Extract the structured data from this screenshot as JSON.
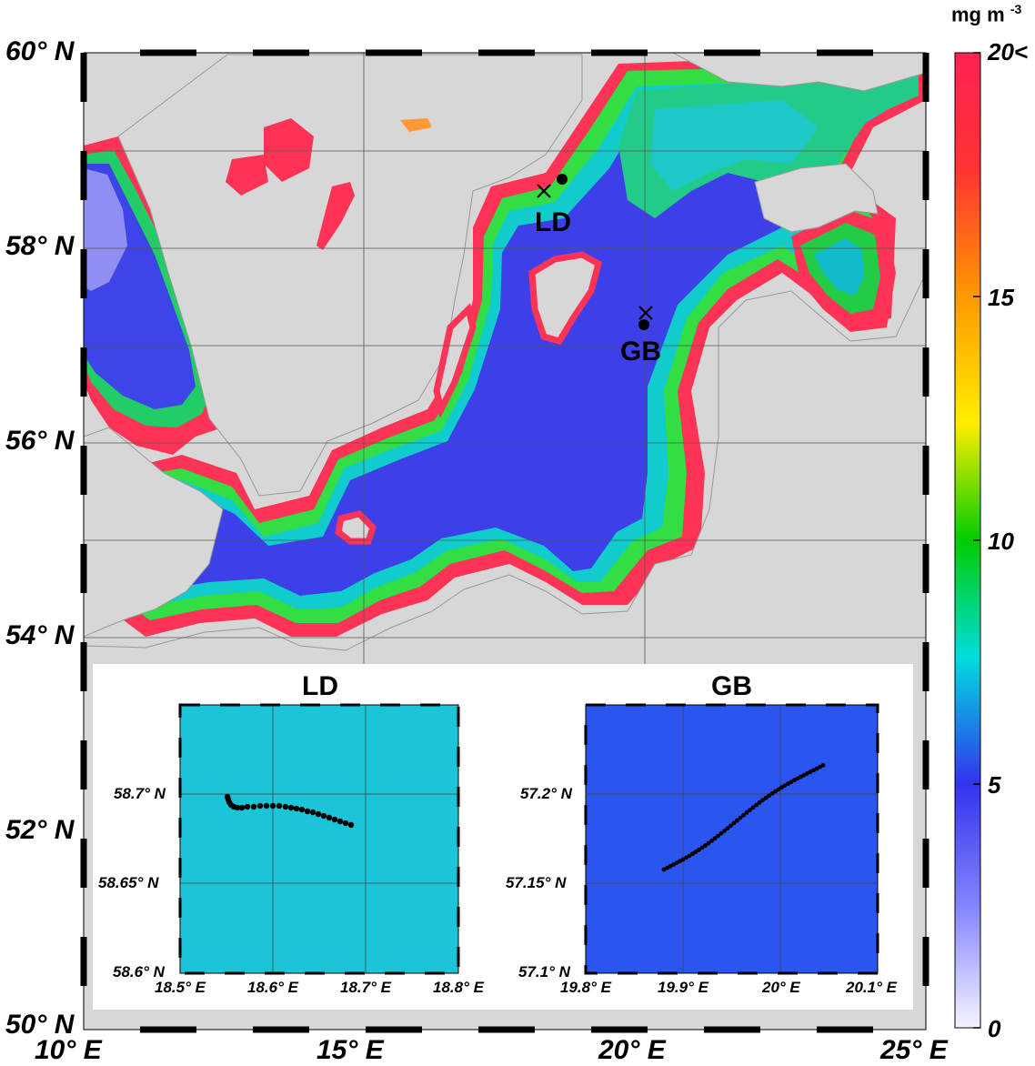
{
  "map": {
    "lat_labels": [
      "60° N",
      "58° N",
      "56° N",
      "54° N",
      "52° N",
      "50° N"
    ],
    "lon_labels": [
      "10° E",
      "15° E",
      "20° E",
      "25° E"
    ],
    "stations": [
      {
        "name": "LD"
      },
      {
        "name": "GB"
      }
    ]
  },
  "colorbar": {
    "unit_label": "mg m",
    "unit_exponent": "-3",
    "tick_labels": [
      "20<",
      "15",
      "10",
      "5",
      "0"
    ],
    "colors": [
      "#ff3355",
      "#ff9900",
      "#ffff00",
      "#00cc00",
      "#00dddd",
      "#3333ee",
      "#ccccff"
    ]
  },
  "insets": [
    {
      "title": "LD",
      "lat_labels": [
        "58.7° N",
        "58.65° N",
        "58.6° N"
      ],
      "lon_labels": [
        "18.5° E",
        "18.6° E",
        "18.7° E",
        "18.8° E"
      ],
      "background": "#1cc4d8"
    },
    {
      "title": "GB",
      "lat_labels": [
        "57.2° N",
        "57.15° N",
        "57.1° N"
      ],
      "lon_labels": [
        "19.8° E",
        "19.9° E",
        "20° E",
        "20.1° E"
      ],
      "background": "#2a55ee"
    }
  ]
}
